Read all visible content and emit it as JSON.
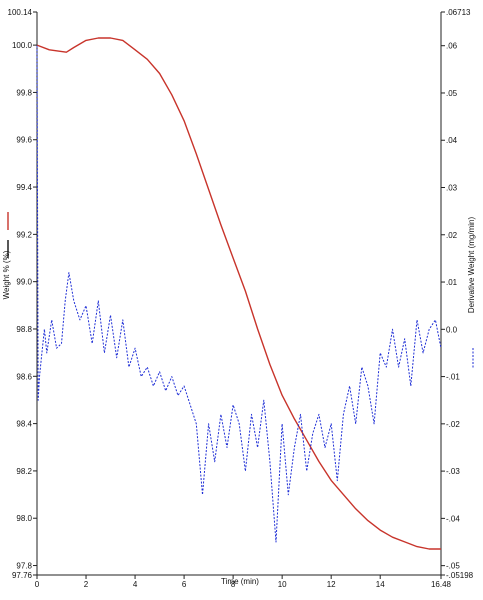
{
  "colors": {
    "weight_series": "#c8342b",
    "derivative_series": "#1f2fd6",
    "axis": "#222222",
    "background": "#ffffff"
  },
  "chart_data": {
    "type": "line",
    "title": "",
    "xlabel": "Time (min)",
    "xlim": [
      0,
      16.48
    ],
    "x_ticks": [
      "0",
      "2",
      "4",
      "6",
      "8",
      "10",
      "12",
      "14",
      "16.48"
    ],
    "y_left": {
      "label": "Weight % (%)",
      "ylim": [
        97.76,
        100.14
      ],
      "ticks": [
        "97.76",
        "97.8",
        "98.0",
        "98.2",
        "98.4",
        "98.6",
        "98.8",
        "99.0",
        "99.2",
        "99.4",
        "99.6",
        "99.8",
        "100.0",
        "100.14"
      ]
    },
    "y_right": {
      "label": "Derivative Weight (mg/min)",
      "ylim": [
        -0.05198,
        0.06713
      ],
      "ticks": [
        "-.05198",
        "-.05",
        "-.04",
        "-.03",
        "-.02",
        "-.01",
        "0.0",
        ".01",
        ".02",
        ".03",
        ".04",
        ".05",
        ".06",
        ".06713"
      ]
    },
    "grid": false,
    "legend": "left-vertical",
    "series": [
      {
        "axis": "left",
        "x": [
          0,
          0.5,
          1.2,
          1.5,
          2.0,
          2.5,
          3.0,
          3.5,
          4.0,
          4.5,
          5.0,
          5.5,
          6.0,
          6.5,
          7.0,
          7.5,
          8.0,
          8.5,
          9.0,
          9.5,
          10.0,
          10.5,
          11.0,
          11.5,
          12.0,
          12.5,
          13.0,
          13.5,
          14.0,
          14.5,
          15.0,
          15.5,
          16.0,
          16.48
        ],
        "values": [
          100.0,
          99.98,
          99.97,
          99.99,
          100.02,
          100.03,
          100.03,
          100.02,
          99.98,
          99.94,
          99.88,
          99.79,
          99.68,
          99.54,
          99.39,
          99.24,
          99.1,
          98.96,
          98.8,
          98.65,
          98.52,
          98.42,
          98.33,
          98.24,
          98.16,
          98.1,
          98.04,
          97.99,
          97.95,
          97.92,
          97.9,
          97.88,
          97.87,
          97.87
        ]
      },
      {
        "axis": "right",
        "x": [
          0,
          0.05,
          0.1,
          0.2,
          0.3,
          0.4,
          0.6,
          0.8,
          1.0,
          1.15,
          1.3,
          1.5,
          1.75,
          2.0,
          2.25,
          2.5,
          2.75,
          3.0,
          3.25,
          3.5,
          3.75,
          4.0,
          4.25,
          4.5,
          4.75,
          5.0,
          5.25,
          5.5,
          5.75,
          6.0,
          6.25,
          6.5,
          6.75,
          7.0,
          7.25,
          7.5,
          7.75,
          8.0,
          8.25,
          8.5,
          8.75,
          9.0,
          9.25,
          9.5,
          9.75,
          10.0,
          10.25,
          10.5,
          10.75,
          11.0,
          11.25,
          11.5,
          11.75,
          12.0,
          12.25,
          12.5,
          12.75,
          13.0,
          13.25,
          13.5,
          13.75,
          14.0,
          14.25,
          14.5,
          14.75,
          15.0,
          15.25,
          15.5,
          15.75,
          16.0,
          16.25,
          16.48
        ],
        "values": [
          0.06,
          -0.015,
          -0.01,
          -0.005,
          0.0,
          -0.005,
          0.002,
          -0.004,
          -0.003,
          0.006,
          0.012,
          0.006,
          0.002,
          0.005,
          -0.003,
          0.006,
          -0.005,
          0.003,
          -0.006,
          0.002,
          -0.008,
          -0.004,
          -0.01,
          -0.008,
          -0.012,
          -0.009,
          -0.013,
          -0.01,
          -0.014,
          -0.012,
          -0.016,
          -0.02,
          -0.035,
          -0.02,
          -0.028,
          -0.018,
          -0.025,
          -0.016,
          -0.02,
          -0.03,
          -0.018,
          -0.025,
          -0.015,
          -0.028,
          -0.045,
          -0.02,
          -0.035,
          -0.025,
          -0.018,
          -0.03,
          -0.022,
          -0.018,
          -0.025,
          -0.02,
          -0.032,
          -0.018,
          -0.012,
          -0.02,
          -0.008,
          -0.012,
          -0.02,
          -0.005,
          -0.008,
          0.0,
          -0.008,
          -0.002,
          -0.012,
          0.002,
          -0.005,
          0.0,
          0.002,
          -0.004
        ]
      }
    ]
  }
}
